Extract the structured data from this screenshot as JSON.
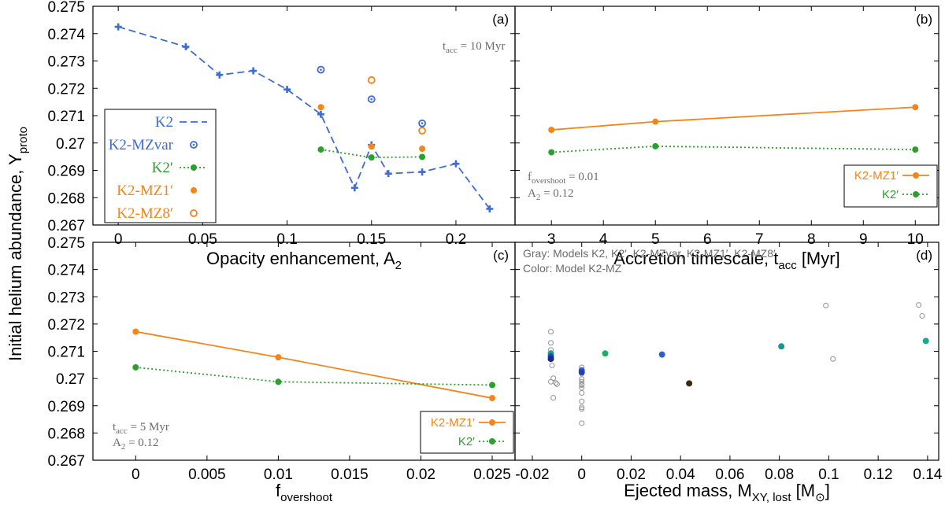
{
  "figure": {
    "ylabel_main": "Initial helium abundance, Y",
    "ylabel_sub": "proto"
  },
  "colors": {
    "blue": "#3c6cd6",
    "green": "#2ca02c",
    "orange": "#f58518",
    "gray": "#9b9b9b",
    "annot": "#6b6b6b"
  },
  "chart_data": [
    {
      "id": "a",
      "type": "line",
      "panel_label": "(a)",
      "xlabel": "Opacity enhancement, A",
      "xlabel_sub": "2",
      "xlim": [
        -0.015,
        0.235
      ],
      "ylim": [
        0.267,
        0.275
      ],
      "xticks": [
        "0",
        "0.05",
        "0.1",
        "0.15",
        "0.2"
      ],
      "xtick_values": [
        0,
        0.05,
        0.1,
        0.15,
        0.2
      ],
      "yticks": [
        "0.267",
        "0.268",
        "0.269",
        "0.27",
        "0.271",
        "0.272",
        "0.273",
        "0.274",
        "0.275"
      ],
      "ytick_values": [
        0.267,
        0.268,
        0.269,
        0.27,
        0.271,
        0.272,
        0.273,
        0.274,
        0.275
      ],
      "annotation": {
        "main": "t",
        "sub": "acc",
        "rest": " = 10 Myr"
      },
      "series": [
        {
          "name": "K2",
          "style": "dashed-plus",
          "color": "#3c6cd6",
          "x": [
            0,
            0.04,
            0.06,
            0.08,
            0.1,
            0.12,
            0.14,
            0.15,
            0.16,
            0.18,
            0.2,
            0.22
          ],
          "y": [
            0.27425,
            0.27352,
            0.27249,
            0.27264,
            0.27196,
            0.27105,
            0.26836,
            0.26993,
            0.26888,
            0.26894,
            0.26924,
            0.26759
          ]
        },
        {
          "name": "K2-MZvar",
          "style": "open-dot-circle",
          "color": "#3c6cd6",
          "x": [
            0.12,
            0.15,
            0.18
          ],
          "y": [
            0.27268,
            0.2716,
            0.27072
          ]
        },
        {
          "name": "K2′",
          "style": "dotted-dot",
          "color": "#2ca02c",
          "x": [
            0.12,
            0.15,
            0.18
          ],
          "y": [
            0.26976,
            0.26947,
            0.26949
          ]
        },
        {
          "name": "K2-MZ1′",
          "style": "filled-dot",
          "color": "#f58518",
          "x": [
            0.12,
            0.15,
            0.18
          ],
          "y": [
            0.27131,
            0.26987,
            0.26979
          ]
        },
        {
          "name": "K2-MZ8′",
          "style": "open-circle",
          "color": "#f58518",
          "x": [
            0.12,
            0.15,
            0.18
          ],
          "y": [
            0.27268,
            0.2723,
            0.27045
          ]
        }
      ]
    },
    {
      "id": "b",
      "type": "line",
      "panel_label": "(b)",
      "xlabel": "Accretion timescale, t",
      "xlabel_sub": "acc",
      "xlabel_rest": " [Myr]",
      "xlim": [
        2.3,
        10.45
      ],
      "ylim": [
        0.267,
        0.275
      ],
      "xticks": [
        "3",
        "4",
        "5",
        "6",
        "7",
        "8",
        "9",
        "10"
      ],
      "xtick_values": [
        3,
        4,
        5,
        6,
        7,
        8,
        9,
        10
      ],
      "annotation1": {
        "main": "f",
        "sub": "overshoot",
        "rest": " = 0.01"
      },
      "annotation2": {
        "main": "A",
        "sub": "2",
        "rest": " = 0.12"
      },
      "series": [
        {
          "name": "K2-MZ1′",
          "style": "solid-dot",
          "color": "#f58518",
          "x": [
            3,
            5,
            10
          ],
          "y": [
            0.27048,
            0.27078,
            0.27131
          ]
        },
        {
          "name": "K2′",
          "style": "dotted-dot",
          "color": "#2ca02c",
          "x": [
            3,
            5,
            10
          ],
          "y": [
            0.26966,
            0.26988,
            0.26976
          ]
        }
      ]
    },
    {
      "id": "c",
      "type": "line",
      "panel_label": "(c)",
      "xlabel": "f",
      "xlabel_sub": "overshoot",
      "xlim": [
        -0.003,
        0.0266
      ],
      "ylim": [
        0.267,
        0.275
      ],
      "xticks": [
        "0",
        "0.005",
        "0.01",
        "0.015",
        "0.02",
        "0.025"
      ],
      "xtick_values": [
        0,
        0.005,
        0.01,
        0.015,
        0.02,
        0.025
      ],
      "yticks": [
        "0.267",
        "0.268",
        "0.269",
        "0.27",
        "0.271",
        "0.272",
        "0.273",
        "0.274",
        "0.275"
      ],
      "ytick_values": [
        0.267,
        0.268,
        0.269,
        0.27,
        0.271,
        0.272,
        0.273,
        0.274,
        0.275
      ],
      "annotation1": {
        "main": "t",
        "sub": "acc",
        "rest": " = 5 Myr"
      },
      "annotation2": {
        "main": "A",
        "sub": "2",
        "rest": " = 0.12"
      },
      "series": [
        {
          "name": "K2-MZ1′",
          "style": "solid-dot",
          "color": "#f58518",
          "x": [
            0,
            0.01,
            0.025
          ],
          "y": [
            0.27172,
            0.27078,
            0.26928
          ]
        },
        {
          "name": "K2′",
          "style": "dotted-dot",
          "color": "#2ca02c",
          "x": [
            0,
            0.01,
            0.025
          ],
          "y": [
            0.27041,
            0.26988,
            0.26976
          ]
        }
      ]
    },
    {
      "id": "d",
      "type": "scatter",
      "panel_label": "(d)",
      "xlabel": "Ejected mass, M",
      "xlabel_sub": "XY, lost",
      "xlabel_rest": " [M",
      "xlabel_sun": "⊙",
      "xlabel_end": "]",
      "xlim": [
        -0.027,
        0.1445
      ],
      "ylim": [
        0.267,
        0.275
      ],
      "xticks": [
        "-0.02",
        "0",
        "0.02",
        "0.04",
        "0.06",
        "0.08",
        "0.1",
        "0.12",
        "0.14"
      ],
      "xtick_values": [
        -0.02,
        0,
        0.02,
        0.04,
        0.06,
        0.08,
        0.1,
        0.12,
        0.14
      ],
      "note1": "Gray: Models K2, K2′, K2-MZvar, K2-MZ1′, K2-MZ8′",
      "note2": "Color: Model K2-MZ",
      "gray_points": {
        "x": [
          -0.0125,
          -0.0125,
          -0.0125,
          -0.0125,
          -0.012,
          -0.0115,
          -0.0105,
          -0.01,
          -0.0115,
          -0.0125,
          0,
          0,
          0,
          0,
          0,
          0,
          0,
          0,
          0,
          0,
          0,
          0,
          0.0988,
          0.1017,
          0.1364,
          0.1378
        ],
        "y": [
          0.27172,
          0.27131,
          0.27105,
          0.27078,
          0.27048,
          0.27001,
          0.26984,
          0.26979,
          0.26929,
          0.26988,
          0.27041,
          0.27018,
          0.26998,
          0.26988,
          0.26976,
          0.26966,
          0.26947,
          0.26916,
          0.26894,
          0.26888,
          0.26836,
          0.26979,
          0.27268,
          0.27072,
          0.2727,
          0.2723
        ]
      },
      "color_points": {
        "x": [
          -0.0125,
          -0.0125,
          -0.0125,
          0,
          0,
          0.0095,
          0.0325,
          0.0435,
          0.0808,
          0.1393
        ],
        "y": [
          0.27092,
          0.27081,
          0.27072,
          0.2703,
          0.27023,
          0.27092,
          0.27088,
          0.26982,
          0.27118,
          0.27138
        ],
        "colors": [
          "#1f9e8f",
          "#2047c8",
          "#152c8c",
          "#3560d0",
          "#1f43b0",
          "#1fae6a",
          "#2a5fcf",
          "#3b2a12",
          "#1a968f",
          "#1ea68a"
        ]
      }
    }
  ]
}
